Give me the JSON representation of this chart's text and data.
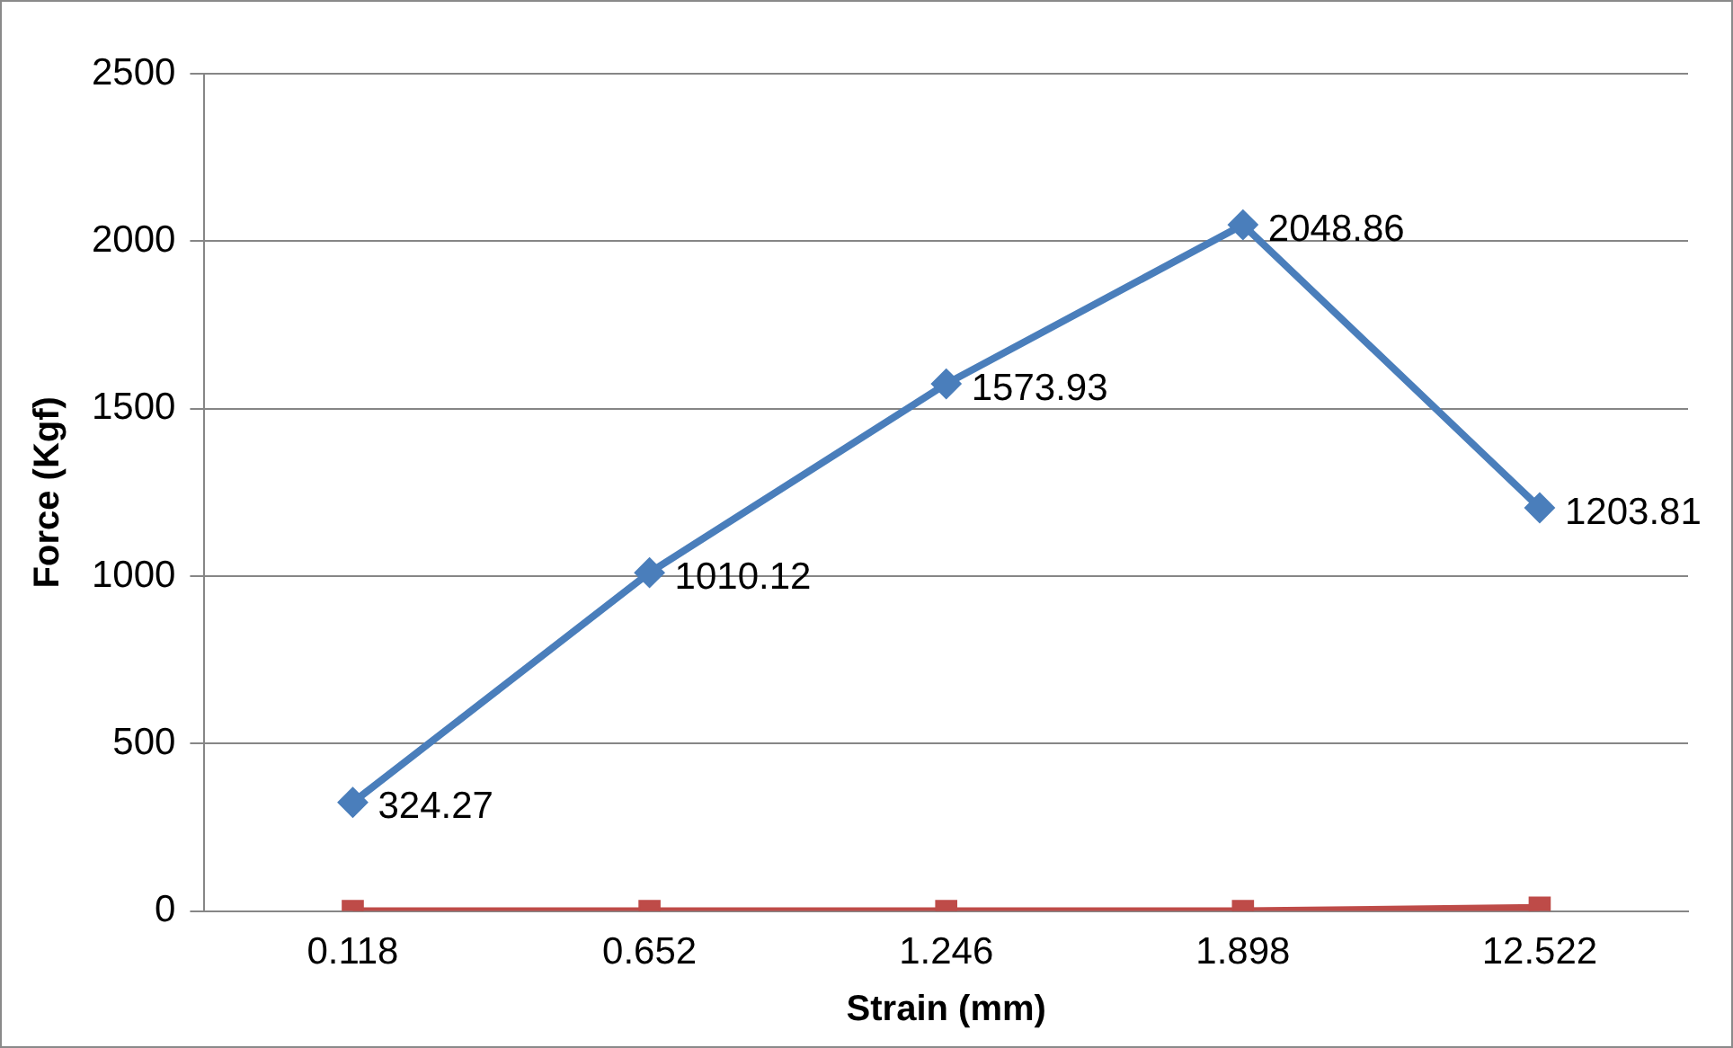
{
  "chart_data": {
    "type": "line",
    "xlabel": "Strain (mm)",
    "ylabel": "Force (Kgf)",
    "categories": [
      "0.118",
      "0.652",
      "1.246",
      "1.898",
      "12.522"
    ],
    "ylim": [
      0,
      2500
    ],
    "yticks": [
      0,
      500,
      1000,
      1500,
      2000,
      2500
    ],
    "grid": "y",
    "legend": false,
    "line_style": "solid",
    "series": [
      {
        "color": "#4a7ebb",
        "marker": "diamond",
        "values": [
          324.27,
          1010.12,
          1573.93,
          2048.86,
          1203.81
        ],
        "value_labels": [
          "324.27",
          "1010.12",
          "1573.93",
          "2048.86",
          "1203.81"
        ]
      },
      {
        "color": "#be4b48",
        "marker": "square",
        "values": [
          0,
          0,
          0,
          0,
          10
        ]
      }
    ]
  }
}
